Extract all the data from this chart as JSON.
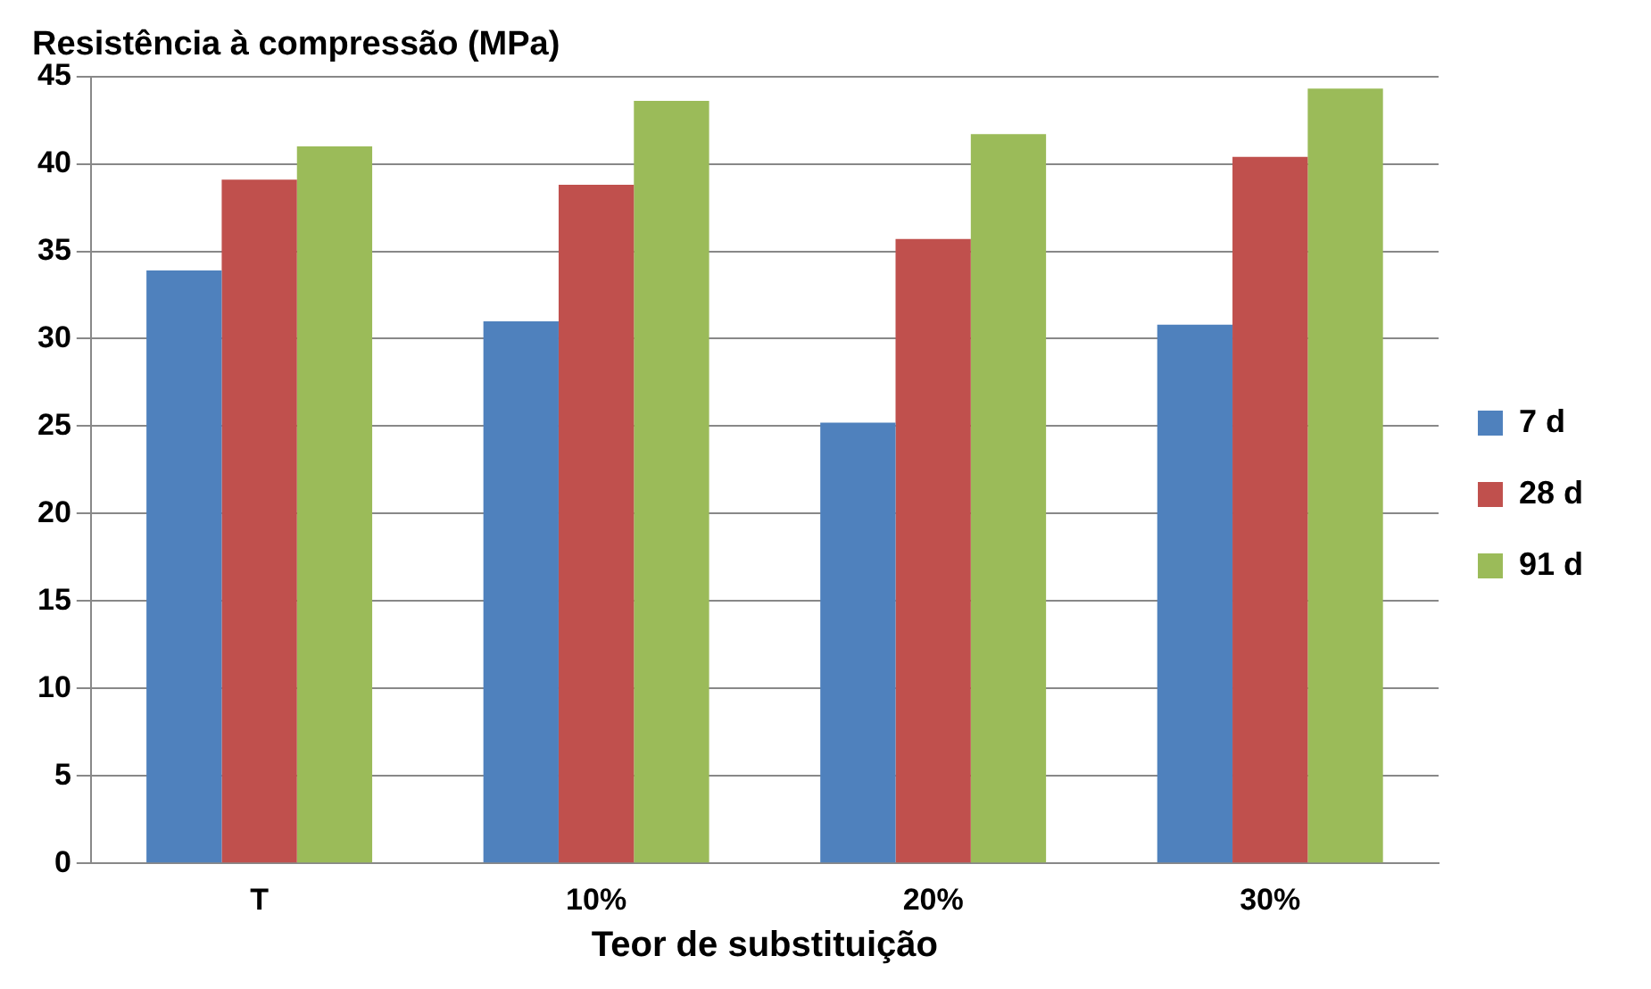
{
  "chart_data": {
    "type": "bar",
    "title": "Resistência à compressão (MPa)",
    "xlabel": "Teor de substituição",
    "categories": [
      "T",
      "10%",
      "20%",
      "30%"
    ],
    "series": [
      {
        "name": "7 d",
        "color": "#4f81bd",
        "values": [
          33.9,
          31.0,
          25.2,
          30.8
        ]
      },
      {
        "name": "28 d",
        "color": "#c0504d",
        "values": [
          39.1,
          38.8,
          35.7,
          40.4
        ]
      },
      {
        "name": "91 d",
        "color": "#9bbb59",
        "values": [
          41.0,
          43.6,
          41.7,
          44.3
        ]
      }
    ],
    "ylim": [
      0,
      45
    ],
    "yticks": [
      0,
      5,
      10,
      15,
      20,
      25,
      30,
      35,
      40,
      45
    ],
    "grid": "y",
    "legend": "right"
  }
}
